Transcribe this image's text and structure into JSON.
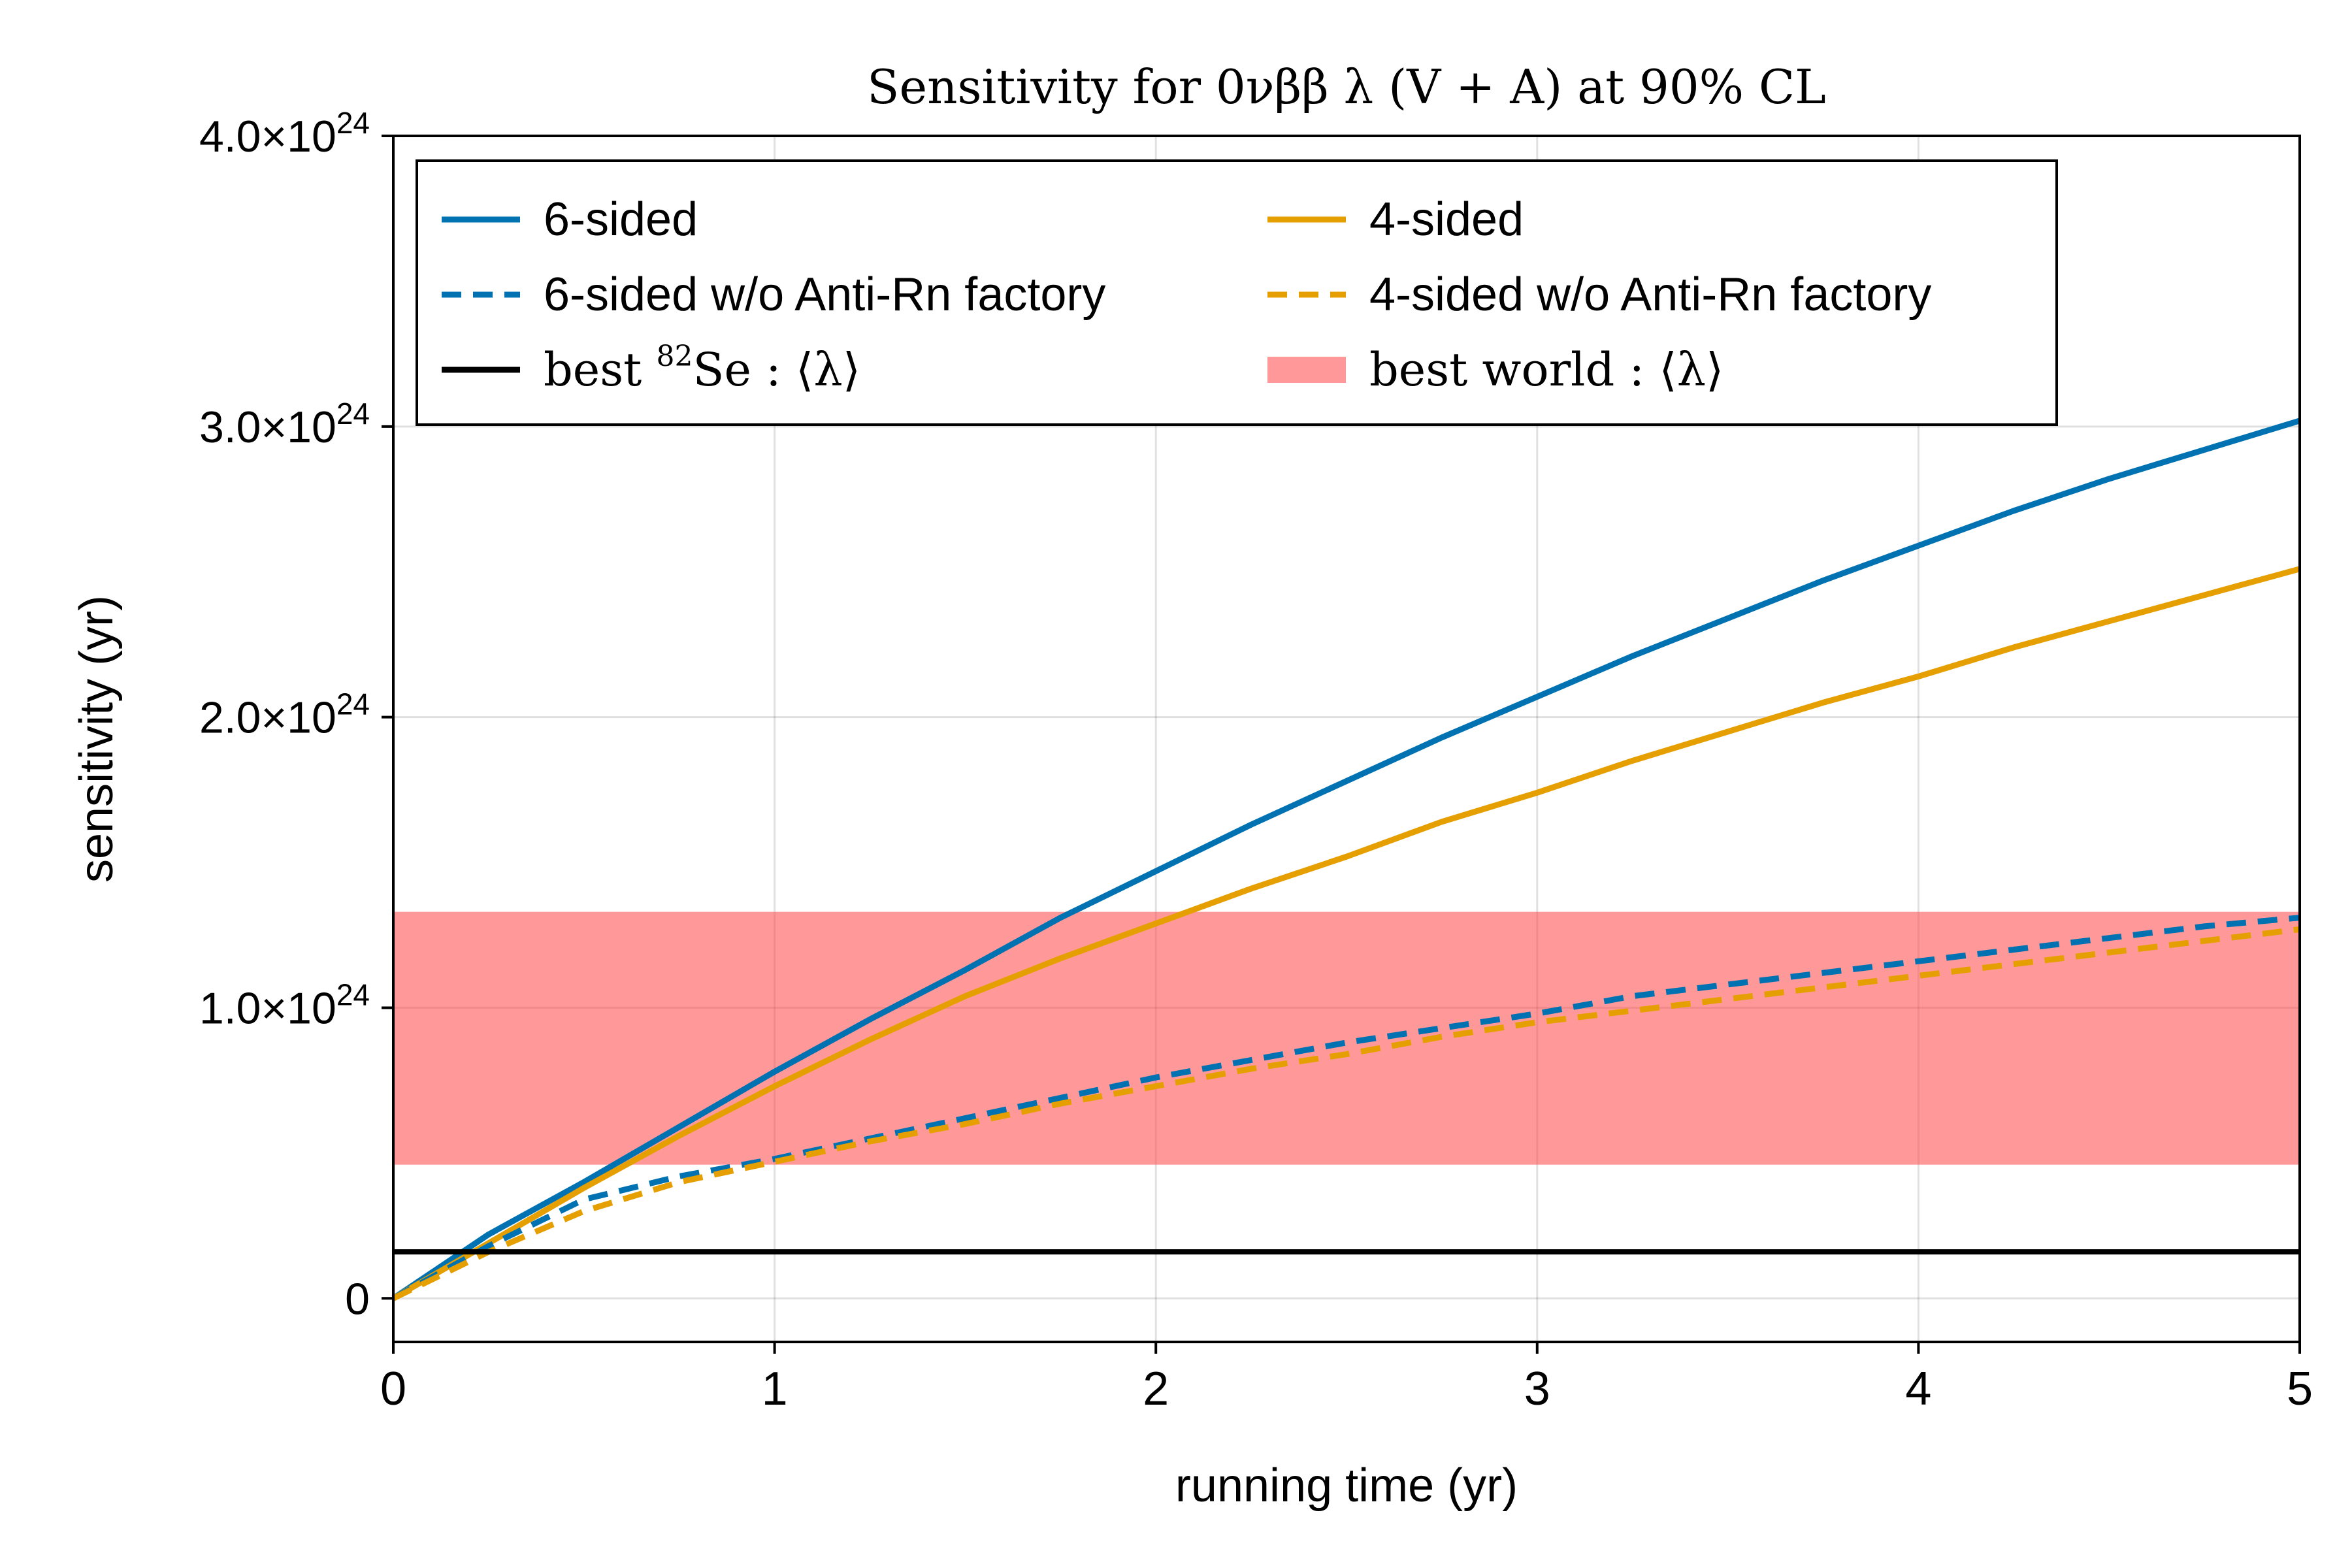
{
  "chart_data": {
    "type": "line",
    "title": "Sensitivity for 0νββ λ (V + A) at 90% CL",
    "xlabel": "running time (yr)",
    "ylabel": "sensitivity (yr)",
    "xlim": [
      0,
      5
    ],
    "ylim": [
      -1.5e+23,
      4e+24
    ],
    "xticks": [
      0,
      1,
      2,
      3,
      4,
      5
    ],
    "xtick_labels": [
      "0",
      "1",
      "2",
      "3",
      "4",
      "5"
    ],
    "yticks": [
      0,
      1e+24,
      2e+24,
      3e+24,
      4e+24
    ],
    "ytick_labels": [
      {
        "mantissa": "0",
        "exp": ""
      },
      {
        "mantissa": "1.0×10",
        "exp": "24"
      },
      {
        "mantissa": "2.0×10",
        "exp": "24"
      },
      {
        "mantissa": "3.0×10",
        "exp": "24"
      },
      {
        "mantissa": "4.0×10",
        "exp": "24"
      }
    ],
    "grid": true,
    "legend_position": "top-left",
    "x": [
      0,
      0.25,
      0.5,
      0.75,
      1.0,
      1.25,
      1.5,
      1.75,
      2.0,
      2.25,
      2.5,
      2.75,
      3.0,
      3.25,
      3.5,
      3.75,
      4.0,
      4.25,
      4.5,
      4.75,
      5.0
    ],
    "series": [
      {
        "name": "6-sided",
        "style": "solid",
        "color": "#0072b2",
        "values": [
          0,
          2.2e+23,
          4e+23,
          5.9e+23,
          7.8e+23,
          9.6e+23,
          1.13e+24,
          1.31e+24,
          1.47e+24,
          1.63e+24,
          1.78e+24,
          1.93e+24,
          2.07e+24,
          2.21e+24,
          2.34e+24,
          2.47e+24,
          2.59e+24,
          2.71e+24,
          2.82e+24,
          2.92e+24,
          3.02e+24
        ]
      },
      {
        "name": "6-sided w/o Anti-Rn factory",
        "style": "dashed",
        "color": "#0072b2",
        "values": [
          0,
          1.8e+23,
          3.4e+23,
          4.2e+23,
          4.8e+23,
          5.5e+23,
          6.2e+23,
          6.9e+23,
          7.6e+23,
          8.2e+23,
          8.8e+23,
          9.3e+23,
          9.8e+23,
          1.04e+24,
          1.08e+24,
          1.12e+24,
          1.16e+24,
          1.2e+24,
          1.24e+24,
          1.28e+24,
          1.31e+24
        ]
      },
      {
        "name": "4-sided",
        "style": "solid",
        "color": "#e69f00",
        "values": [
          0,
          1.9e+23,
          3.8e+23,
          5.6e+23,
          7.3e+23,
          8.9e+23,
          1.04e+24,
          1.17e+24,
          1.29e+24,
          1.41e+24,
          1.52e+24,
          1.64e+24,
          1.74e+24,
          1.85e+24,
          1.95e+24,
          2.05e+24,
          2.14e+24,
          2.24e+24,
          2.33e+24,
          2.42e+24,
          2.51e+24
        ]
      },
      {
        "name": "4-sided w/o Anti-Rn factory",
        "style": "dashed",
        "color": "#e69f00",
        "values": [
          0,
          1.6e+23,
          3e+23,
          4e+23,
          4.7e+23,
          5.4e+23,
          6e+23,
          6.7e+23,
          7.3e+23,
          7.9e+23,
          8.4e+23,
          9e+23,
          9.5e+23,
          9.9e+23,
          1.03e+24,
          1.07e+24,
          1.11e+24,
          1.15e+24,
          1.19e+24,
          1.23e+24,
          1.27e+24
        ]
      }
    ],
    "reference_line": {
      "name": "best ⁸²Se : ⟨λ⟩",
      "label_pre": "best ",
      "label_sup": "82",
      "label_post": "Se :  ⟨λ⟩",
      "y": 1.6e+23,
      "color": "#000000"
    },
    "reference_band": {
      "name": "best world : ⟨λ⟩",
      "label": "best world :  ⟨λ⟩",
      "ymin": 4.6e+23,
      "ymax": 1.33e+24,
      "color": "#ff4d4f",
      "opacity": 0.58
    }
  }
}
